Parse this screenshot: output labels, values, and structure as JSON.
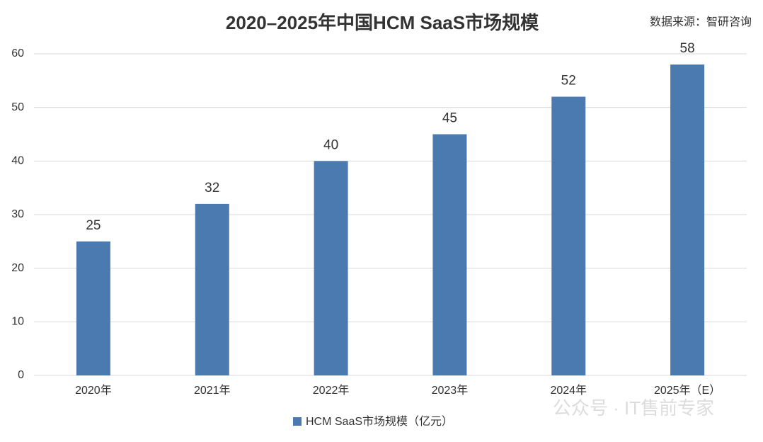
{
  "chart_data": {
    "type": "bar",
    "title": "2020–2025年中国HCM SaaS市场规模",
    "source": "数据来源：智研咨询",
    "watermark": "公众号 · IT售前专家",
    "categories": [
      "2020年",
      "2021年",
      "2022年",
      "2023年",
      "2024年",
      "2025年（E）"
    ],
    "series": [
      {
        "name": "HCM SaaS市场规模（亿元）",
        "color": "#4a7ab0",
        "values": [
          25,
          32,
          40,
          45,
          52,
          58
        ]
      }
    ],
    "ylim": [
      0,
      60
    ],
    "yticks": [
      0,
      10,
      20,
      30,
      40,
      50,
      60
    ],
    "grid": true,
    "legend": "bottom"
  }
}
